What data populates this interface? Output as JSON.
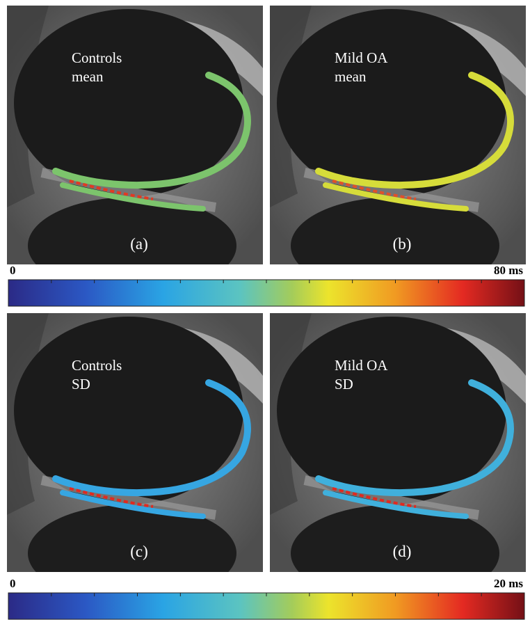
{
  "panels": [
    {
      "lines": [
        "Controls",
        "mean"
      ],
      "tag": "(a)",
      "color": "#7cc46c",
      "accent": "#e23a22"
    },
    {
      "lines": [
        "Mild OA",
        "mean"
      ],
      "tag": "(b)",
      "color": "#d6dc3a",
      "accent": "#e0502a"
    },
    {
      "lines": [
        "Controls",
        "SD"
      ],
      "tag": "(c)",
      "color": "#36a6e2",
      "accent": "#e02a20"
    },
    {
      "lines": [
        "Mild OA",
        "SD"
      ],
      "tag": "(d)",
      "color": "#40b0dc",
      "accent": "#e02a20"
    }
  ],
  "colorbars": [
    {
      "min": "0",
      "max": "80 ms"
    },
    {
      "min": "0",
      "max": "20 ms"
    }
  ]
}
